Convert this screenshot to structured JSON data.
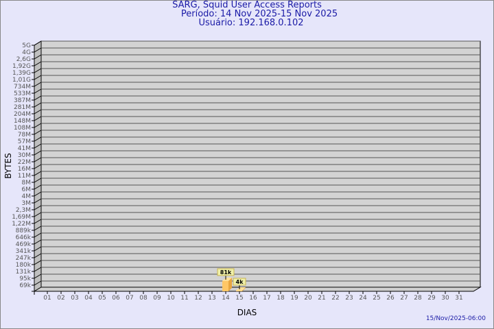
{
  "chart_data": {
    "type": "bar",
    "title": "SARG, Squid User Access Reports",
    "subtitle": [
      "Período: 14 Nov 2025-15 Nov 2025",
      "Usuário: 192.168.0.102"
    ],
    "xlabel": "DIAS",
    "ylabel": "BYTES",
    "y_scale": "log",
    "y_ticks": [
      "69k",
      "95k",
      "131k",
      "180k",
      "247k",
      "341k",
      "469k",
      "646k",
      "889k",
      "1,22M",
      "1,69M",
      "2,3M",
      "3M",
      "4M",
      "6M",
      "8M",
      "11M",
      "16M",
      "22M",
      "30M",
      "41M",
      "57M",
      "78M",
      "108M",
      "148M",
      "204M",
      "281M",
      "387M",
      "533M",
      "734M",
      "1,01G",
      "1,39G",
      "1,92G",
      "2,6G",
      "4G",
      "5G"
    ],
    "categories": [
      "01",
      "02",
      "03",
      "04",
      "05",
      "06",
      "07",
      "08",
      "09",
      "10",
      "11",
      "12",
      "13",
      "14",
      "15",
      "16",
      "17",
      "18",
      "19",
      "20",
      "21",
      "22",
      "23",
      "24",
      "25",
      "26",
      "27",
      "28",
      "29",
      "30",
      "31"
    ],
    "bars": [
      {
        "day": "14",
        "value": 81000,
        "label": "81k"
      },
      {
        "day": "15",
        "value": 4000,
        "label": "4k"
      }
    ],
    "grid": true,
    "colors": {
      "background": "#e6e6fa",
      "plot": "#d3d3d3",
      "bar": "#ffc766",
      "label_bg": "#f0f0a8",
      "title": "#1a1aa6"
    }
  },
  "footer": "15/Nov/2025-06:00"
}
